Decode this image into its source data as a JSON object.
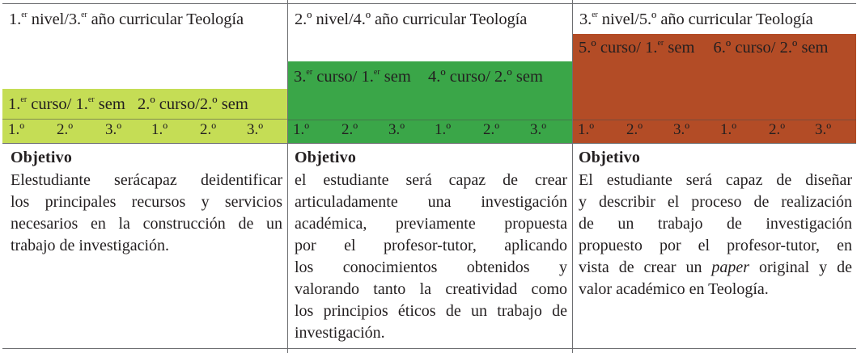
{
  "levels": [
    {
      "title_pre": "1.",
      "title_sup": "er",
      "title_mid": " nivel/3.",
      "title_sup2": "er",
      "title_post": " año curricular Teología",
      "course_a_pre": "1.",
      "course_a_sup": "er",
      "course_a_post": " curso/ 1.",
      "course_a_sup2": "er",
      "course_a_post2": " sem",
      "course_b": "2.º curso/2.º sem",
      "numbers": [
        "1.º",
        "2.º",
        "3.º",
        "1.º",
        "2.º",
        "3.º"
      ],
      "band_color": "#c5dd55",
      "objective_label": "Objetivo",
      "objective_lines": [
        "Elestudiante serácapaz deidentificar",
        "los principales recursos y servicios",
        "necesarios en la construcción de un",
        "trabajo de investigación."
      ]
    },
    {
      "title_pre": "2.º nivel/4.º año curricular Teología",
      "course_a_pre": "3.",
      "course_a_sup": "er",
      "course_a_post": " curso/ 1.",
      "course_a_sup2": "er",
      "course_a_post2": " sem",
      "course_b": "4.º curso/ 2.º sem",
      "numbers": [
        "1.º",
        "2.º",
        "3.º",
        "1.º",
        "2.º",
        "3.º"
      ],
      "band_color": "#3aa648",
      "objective_label": "Objetivo",
      "objective_lines": [
        "el estudiante será capaz de crear",
        "articuladamente una investigación",
        "académica, previamente propuesta",
        "por el profesor-tutor, aplicando",
        "los conocimientos obtenidos y",
        "valorando tanto la creatividad como",
        "los principios éticos de un trabajo de",
        "investigación."
      ]
    },
    {
      "title_pre": "3.",
      "title_sup": "er",
      "title_post": " nivel/5.º año curricular Teología",
      "course_a": "5.º curso/ 1.",
      "course_a_sup": "er",
      "course_a_post": " sem",
      "course_b": "6.º curso/ 2.º sem",
      "numbers": [
        "1.º",
        "2.º",
        "3.º",
        "1.º",
        "2.º",
        "3.º"
      ],
      "band_color": "#b34c26",
      "objective_label": "Objetivo",
      "objective_lines_pre": [
        "El estudiante será capaz de diseñar",
        "y describir el proceso de realización",
        "de un trabajo de investigación",
        "propuesto por el profesor-tutor, en"
      ],
      "objective_line5_pre": "vista de crear un ",
      "objective_line5_em": "paper",
      "objective_line5_post": " original y de",
      "objective_line6": "valor académico en Teología."
    }
  ]
}
